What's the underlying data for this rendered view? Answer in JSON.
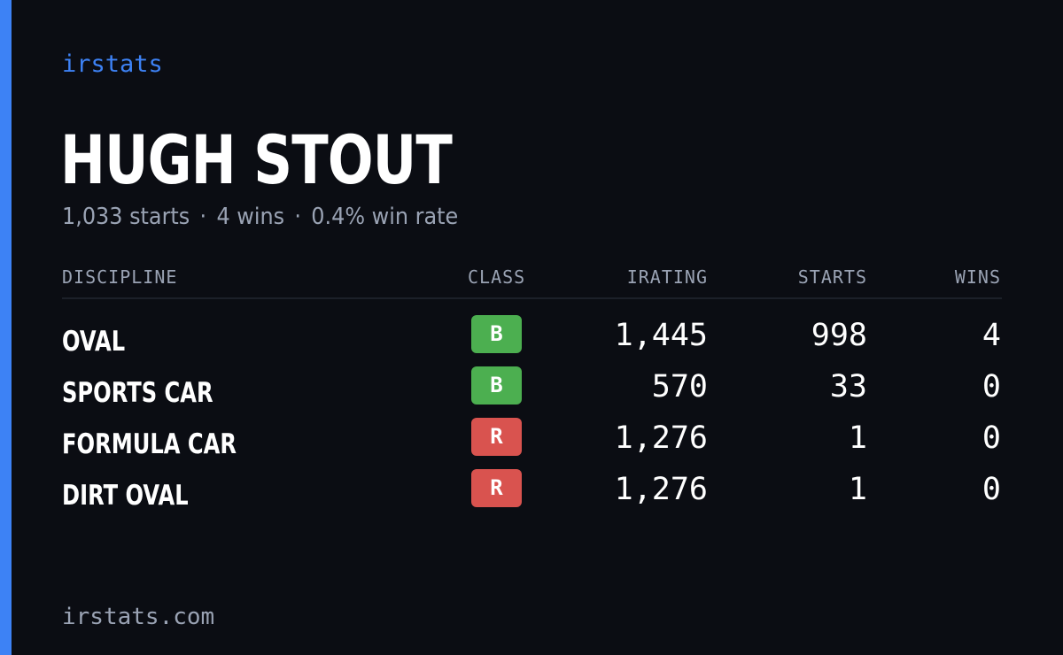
{
  "brand": "irstats",
  "driver": {
    "name": "HUGH STOUT"
  },
  "summary": {
    "starts": "1,033 starts",
    "wins": "4 wins",
    "win_rate": "0.4% win rate",
    "separator": "·"
  },
  "table": {
    "headers": {
      "discipline": "DISCIPLINE",
      "class": "CLASS",
      "irating": "IRATING",
      "starts": "STARTS",
      "wins": "WINS"
    },
    "rows": [
      {
        "discipline": "OVAL",
        "class": "B",
        "class_color": "#4caf50",
        "irating": "1,445",
        "starts": "998",
        "wins": "4"
      },
      {
        "discipline": "SPORTS CAR",
        "class": "B",
        "class_color": "#4caf50",
        "irating": "570",
        "starts": "33",
        "wins": "0"
      },
      {
        "discipline": "FORMULA CAR",
        "class": "R",
        "class_color": "#d9534f",
        "irating": "1,276",
        "starts": "1",
        "wins": "0"
      },
      {
        "discipline": "DIRT OVAL",
        "class": "R",
        "class_color": "#d9534f",
        "irating": "1,276",
        "starts": "1",
        "wins": "0"
      }
    ]
  },
  "footer": "irstats.com",
  "colors": {
    "accent": "#3d82f5",
    "background": "#0b0d13",
    "muted_text": "#9aa3b4",
    "class_b": "#4caf50",
    "class_r": "#d9534f"
  }
}
